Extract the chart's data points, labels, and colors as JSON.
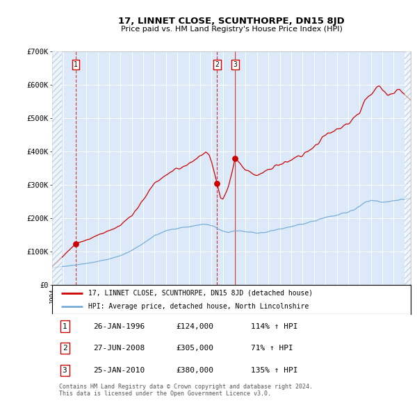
{
  "title": "17, LINNET CLOSE, SCUNTHORPE, DN15 8JD",
  "subtitle": "Price paid vs. HM Land Registry's House Price Index (HPI)",
  "sale_dates_num": [
    1996.07,
    2008.49,
    2010.07
  ],
  "sale_prices": [
    124000,
    305000,
    380000
  ],
  "sale_labels": [
    "1",
    "2",
    "3"
  ],
  "red_line_color": "#cc0000",
  "blue_line_color": "#7aaed6",
  "background_color": "#dbe9f8",
  "grid_color": "#ffffff",
  "ylim": [
    0,
    700000
  ],
  "xlim": [
    1994.0,
    2025.5
  ],
  "legend_line1": "17, LINNET CLOSE, SCUNTHORPE, DN15 8JD (detached house)",
  "legend_line2": "HPI: Average price, detached house, North Lincolnshire",
  "table_rows": [
    [
      "1",
      "26-JAN-1996",
      "£124,000",
      "114% ↑ HPI"
    ],
    [
      "2",
      "27-JUN-2008",
      "£305,000",
      "71% ↑ HPI"
    ],
    [
      "3",
      "25-JAN-2010",
      "£380,000",
      "135% ↑ HPI"
    ]
  ],
  "footer": "Contains HM Land Registry data © Crown copyright and database right 2024.\nThis data is licensed under the Open Government Licence v3.0.",
  "yticks": [
    0,
    100000,
    200000,
    300000,
    400000,
    500000,
    600000,
    700000
  ],
  "ytick_labels": [
    "£0",
    "£100K",
    "£200K",
    "£300K",
    "£400K",
    "£500K",
    "£600K",
    "£700K"
  ]
}
